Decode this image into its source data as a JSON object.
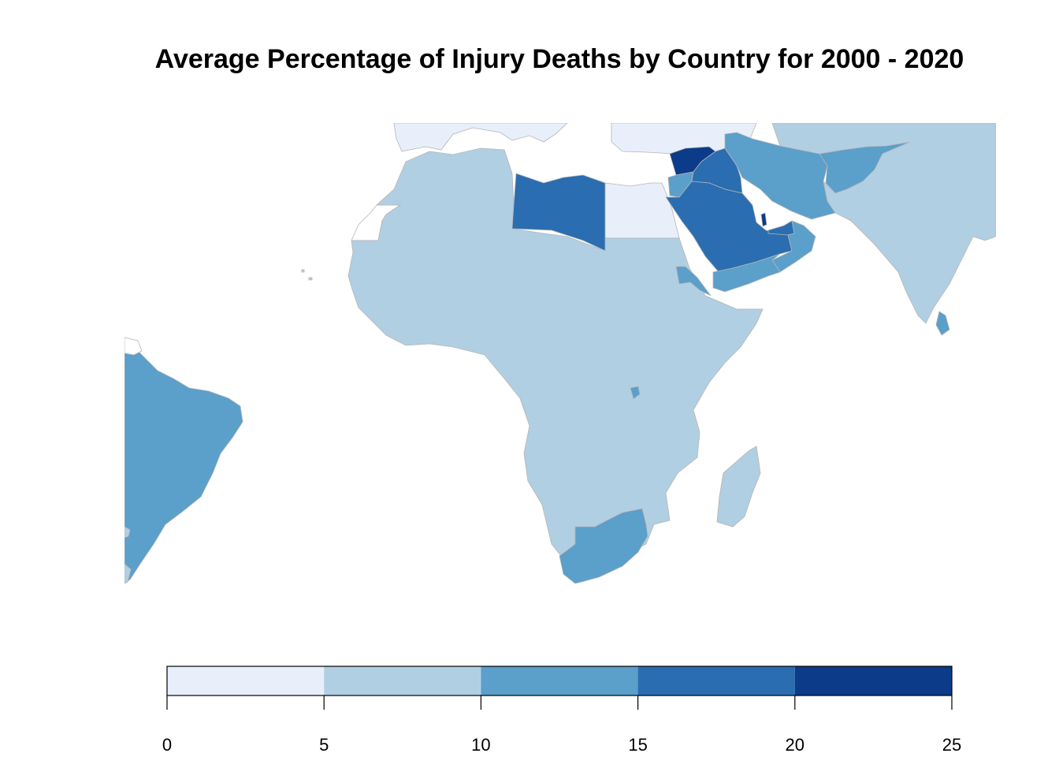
{
  "title": "Average Percentage of Injury Deaths by Country for 2000 - 2020",
  "colors": {
    "bin_0_5": "#e8effb",
    "bin_5_10": "#b1cfe3",
    "bin_10_15": "#5b9fcb",
    "bin_15_20": "#2a6db1",
    "bin_20_25": "#0b3b89",
    "border": "#b5b5b5",
    "no_data": "#ffffff"
  },
  "legend": {
    "breaks": [
      0,
      5,
      10,
      15,
      20,
      25
    ],
    "tick_labels": [
      "0",
      "5",
      "10",
      "15",
      "20",
      "25"
    ]
  },
  "regions": [
    {
      "name": "Europe (south)",
      "bin": "bin_0_5"
    },
    {
      "name": "Turkey",
      "bin": "bin_0_5"
    },
    {
      "name": "Egypt",
      "bin": "bin_0_5"
    },
    {
      "name": "Western Sahara",
      "bin": "no_data"
    },
    {
      "name": "North & Sub-Saharan Africa",
      "bin": "bin_5_10"
    },
    {
      "name": "Central Asia",
      "bin": "bin_5_10"
    },
    {
      "name": "India / Pakistan",
      "bin": "bin_5_10"
    },
    {
      "name": "Madagascar",
      "bin": "bin_5_10"
    },
    {
      "name": "Libya",
      "bin": "bin_15_20"
    },
    {
      "name": "Syria",
      "bin": "bin_20_25"
    },
    {
      "name": "Iraq",
      "bin": "bin_15_20"
    },
    {
      "name": "Saudi Arabia",
      "bin": "bin_15_20"
    },
    {
      "name": "Qatar",
      "bin": "bin_20_25"
    },
    {
      "name": "UAE",
      "bin": "bin_15_20"
    },
    {
      "name": "Jordan",
      "bin": "bin_10_15"
    },
    {
      "name": "Iran",
      "bin": "bin_10_15"
    },
    {
      "name": "Afghanistan",
      "bin": "bin_10_15"
    },
    {
      "name": "Oman",
      "bin": "bin_10_15"
    },
    {
      "name": "Yemen",
      "bin": "bin_10_15"
    },
    {
      "name": "Eritrea",
      "bin": "bin_10_15"
    },
    {
      "name": "Sri Lanka",
      "bin": "bin_10_15"
    },
    {
      "name": "Burundi",
      "bin": "bin_10_15"
    },
    {
      "name": "South Africa",
      "bin": "bin_10_15"
    },
    {
      "name": "Brazil",
      "bin": "bin_10_15"
    }
  ]
}
